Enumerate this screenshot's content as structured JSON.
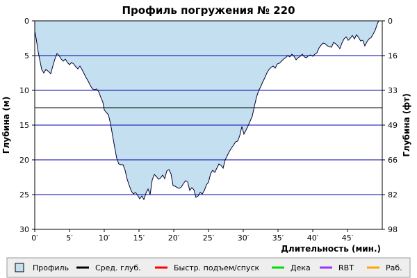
{
  "chart_data": {
    "type": "area",
    "title": "Профиль погружения № 220",
    "xlabel": "Длительность (мин.)",
    "ylabel_left": "Глубина (м)",
    "ylabel_right": "Глубина (фт)",
    "xlim": [
      0,
      50
    ],
    "ylim": [
      0,
      30
    ],
    "y_inverted": true,
    "x_ticks": [
      0,
      5,
      10,
      15,
      20,
      25,
      30,
      35,
      40,
      45
    ],
    "x_tick_labels": [
      "0′",
      "5′",
      "10′",
      "15′",
      "20′",
      "25′",
      "30′",
      "35′",
      "40′",
      "45′"
    ],
    "y_ticks": [
      0,
      5,
      10,
      15,
      20,
      25,
      30
    ],
    "y_tick_labels": [
      "0",
      "5",
      "10",
      "15",
      "20",
      "25",
      "30"
    ],
    "y_right_ticks": [
      0,
      5,
      10,
      15,
      20,
      25,
      30
    ],
    "y_right_tick_labels": [
      "0",
      "16",
      "33",
      "49",
      "66",
      "82",
      "98"
    ],
    "grid_horizontal": true,
    "average_depth": 12.5,
    "colors": {
      "profile_fill": "#c4e0f0",
      "profile_line": "#000033",
      "grid": "#0000aa",
      "average": "#000000",
      "fast_ascent": "#ff0000",
      "deco": "#00dd00",
      "rbt": "#9933ff",
      "work": "#ffa500"
    },
    "series": [
      {
        "name": "Профиль",
        "points": [
          [
            0.0,
            1.5
          ],
          [
            0.2,
            2.5
          ],
          [
            0.5,
            4.5
          ],
          [
            0.8,
            6.0
          ],
          [
            1.0,
            7.0
          ],
          [
            1.3,
            7.5
          ],
          [
            1.6,
            7.0
          ],
          [
            2.0,
            7.3
          ],
          [
            2.3,
            7.6
          ],
          [
            2.6,
            6.5
          ],
          [
            2.9,
            5.5
          ],
          [
            3.2,
            4.7
          ],
          [
            3.5,
            5.0
          ],
          [
            3.8,
            5.5
          ],
          [
            4.1,
            5.8
          ],
          [
            4.4,
            5.5
          ],
          [
            4.7,
            6.0
          ],
          [
            5.0,
            6.3
          ],
          [
            5.3,
            6.0
          ],
          [
            5.6,
            6.2
          ],
          [
            5.9,
            6.6
          ],
          [
            6.2,
            6.9
          ],
          [
            6.5,
            6.5
          ],
          [
            6.8,
            7.0
          ],
          [
            7.1,
            7.6
          ],
          [
            7.4,
            8.2
          ],
          [
            7.7,
            8.7
          ],
          [
            8.0,
            9.3
          ],
          [
            8.3,
            9.8
          ],
          [
            8.6,
            9.9
          ],
          [
            8.9,
            9.8
          ],
          [
            9.2,
            10.2
          ],
          [
            9.5,
            11.0
          ],
          [
            9.8,
            11.7
          ],
          [
            10.0,
            12.8
          ],
          [
            10.3,
            13.2
          ],
          [
            10.6,
            13.5
          ],
          [
            10.9,
            14.8
          ],
          [
            11.2,
            16.5
          ],
          [
            11.5,
            18.2
          ],
          [
            11.8,
            19.8
          ],
          [
            12.1,
            20.6
          ],
          [
            12.4,
            20.7
          ],
          [
            12.7,
            20.7
          ],
          [
            13.0,
            21.5
          ],
          [
            13.3,
            22.8
          ],
          [
            13.6,
            23.7
          ],
          [
            13.9,
            24.5
          ],
          [
            14.2,
            24.9
          ],
          [
            14.5,
            24.7
          ],
          [
            14.8,
            25.1
          ],
          [
            15.1,
            25.6
          ],
          [
            15.4,
            25.2
          ],
          [
            15.7,
            25.7
          ],
          [
            16.0,
            24.8
          ],
          [
            16.3,
            24.2
          ],
          [
            16.6,
            25.0
          ],
          [
            16.9,
            22.9
          ],
          [
            17.2,
            22.1
          ],
          [
            17.5,
            22.4
          ],
          [
            17.8,
            22.8
          ],
          [
            18.1,
            22.6
          ],
          [
            18.4,
            22.2
          ],
          [
            18.7,
            22.7
          ],
          [
            19.0,
            21.6
          ],
          [
            19.3,
            21.4
          ],
          [
            19.6,
            22.0
          ],
          [
            19.9,
            23.7
          ],
          [
            20.2,
            23.8
          ],
          [
            20.5,
            24.0
          ],
          [
            20.8,
            24.1
          ],
          [
            21.1,
            23.9
          ],
          [
            21.4,
            23.4
          ],
          [
            21.7,
            23.0
          ],
          [
            22.0,
            23.2
          ],
          [
            22.3,
            24.4
          ],
          [
            22.6,
            24.0
          ],
          [
            22.9,
            24.3
          ],
          [
            23.2,
            25.4
          ],
          [
            23.5,
            25.2
          ],
          [
            23.8,
            24.7
          ],
          [
            24.1,
            24.9
          ],
          [
            24.4,
            24.4
          ],
          [
            24.7,
            23.6
          ],
          [
            25.0,
            23.2
          ],
          [
            25.3,
            22.0
          ],
          [
            25.6,
            21.5
          ],
          [
            25.9,
            21.8
          ],
          [
            26.2,
            21.2
          ],
          [
            26.5,
            20.6
          ],
          [
            26.8,
            20.8
          ],
          [
            27.1,
            21.2
          ],
          [
            27.4,
            20.0
          ],
          [
            27.7,
            19.4
          ],
          [
            28.0,
            18.8
          ],
          [
            28.3,
            18.3
          ],
          [
            28.6,
            17.9
          ],
          [
            28.9,
            17.4
          ],
          [
            29.2,
            17.3
          ],
          [
            29.5,
            16.5
          ],
          [
            29.8,
            15.2
          ],
          [
            30.1,
            16.3
          ],
          [
            30.4,
            15.7
          ],
          [
            30.7,
            15.1
          ],
          [
            31.0,
            14.4
          ],
          [
            31.3,
            13.7
          ],
          [
            31.6,
            12.3
          ],
          [
            31.9,
            11.0
          ],
          [
            32.2,
            10.1
          ],
          [
            32.5,
            9.5
          ],
          [
            32.8,
            8.8
          ],
          [
            33.1,
            8.2
          ],
          [
            33.4,
            7.5
          ],
          [
            33.7,
            7.0
          ],
          [
            34.0,
            6.7
          ],
          [
            34.3,
            6.5
          ],
          [
            34.6,
            6.8
          ],
          [
            34.9,
            6.2
          ],
          [
            35.2,
            6.1
          ],
          [
            35.5,
            5.8
          ],
          [
            35.8,
            5.5
          ],
          [
            36.1,
            5.3
          ],
          [
            36.4,
            5.0
          ],
          [
            36.7,
            5.2
          ],
          [
            37.0,
            4.8
          ],
          [
            37.3,
            5.1
          ],
          [
            37.6,
            5.6
          ],
          [
            37.9,
            5.3
          ],
          [
            38.2,
            5.1
          ],
          [
            38.5,
            4.8
          ],
          [
            38.8,
            5.2
          ],
          [
            39.1,
            5.3
          ],
          [
            39.4,
            5.0
          ],
          [
            39.7,
            4.9
          ],
          [
            40.0,
            5.1
          ],
          [
            40.3,
            4.8
          ],
          [
            40.6,
            4.6
          ],
          [
            40.9,
            3.9
          ],
          [
            41.2,
            3.5
          ],
          [
            41.5,
            3.2
          ],
          [
            41.8,
            3.3
          ],
          [
            42.1,
            3.6
          ],
          [
            42.4,
            3.7
          ],
          [
            42.7,
            3.8
          ],
          [
            43.0,
            3.1
          ],
          [
            43.3,
            3.3
          ],
          [
            43.6,
            3.6
          ],
          [
            43.9,
            4.0
          ],
          [
            44.2,
            3.2
          ],
          [
            44.5,
            2.6
          ],
          [
            44.8,
            2.3
          ],
          [
            45.1,
            2.8
          ],
          [
            45.4,
            2.5
          ],
          [
            45.7,
            2.1
          ],
          [
            46.0,
            2.6
          ],
          [
            46.3,
            2.0
          ],
          [
            46.6,
            2.4
          ],
          [
            46.9,
            2.9
          ],
          [
            47.2,
            2.8
          ],
          [
            47.5,
            3.6
          ],
          [
            47.8,
            3.0
          ],
          [
            48.1,
            2.6
          ],
          [
            48.4,
            2.4
          ],
          [
            48.7,
            1.9
          ],
          [
            49.0,
            1.3
          ],
          [
            49.3,
            0.4
          ],
          [
            49.5,
            0.0
          ]
        ]
      }
    ],
    "legend": [
      {
        "label": "Профиль",
        "kind": "box",
        "color": "#c4e0f0"
      },
      {
        "label": "Сред. глуб.",
        "kind": "line",
        "color": "#000000"
      },
      {
        "label": "Быстр. подъем/спуск",
        "kind": "line",
        "color": "#ff0000"
      },
      {
        "label": "Дека",
        "kind": "line",
        "color": "#00dd00"
      },
      {
        "label": "RBT",
        "kind": "line",
        "color": "#9933ff"
      },
      {
        "label": "Раб.",
        "kind": "line",
        "color": "#ffa500"
      }
    ]
  }
}
